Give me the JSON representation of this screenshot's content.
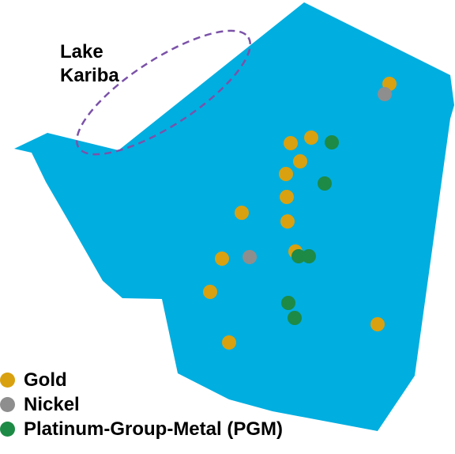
{
  "map": {
    "fill_color": "#00aee0",
    "lake_outline_color": "#7b52a8",
    "lake_label_lines": [
      "Lake",
      "Kariba"
    ]
  },
  "legend": {
    "items": [
      {
        "key": "gold",
        "label": "Gold",
        "color": "#d9a10f"
      },
      {
        "key": "nickel",
        "label": "Nickel",
        "color": "#8e8e8e"
      },
      {
        "key": "pgm",
        "label": "Platinum-Group-Metal (PGM)",
        "color": "#1d8a45"
      }
    ]
  }
}
